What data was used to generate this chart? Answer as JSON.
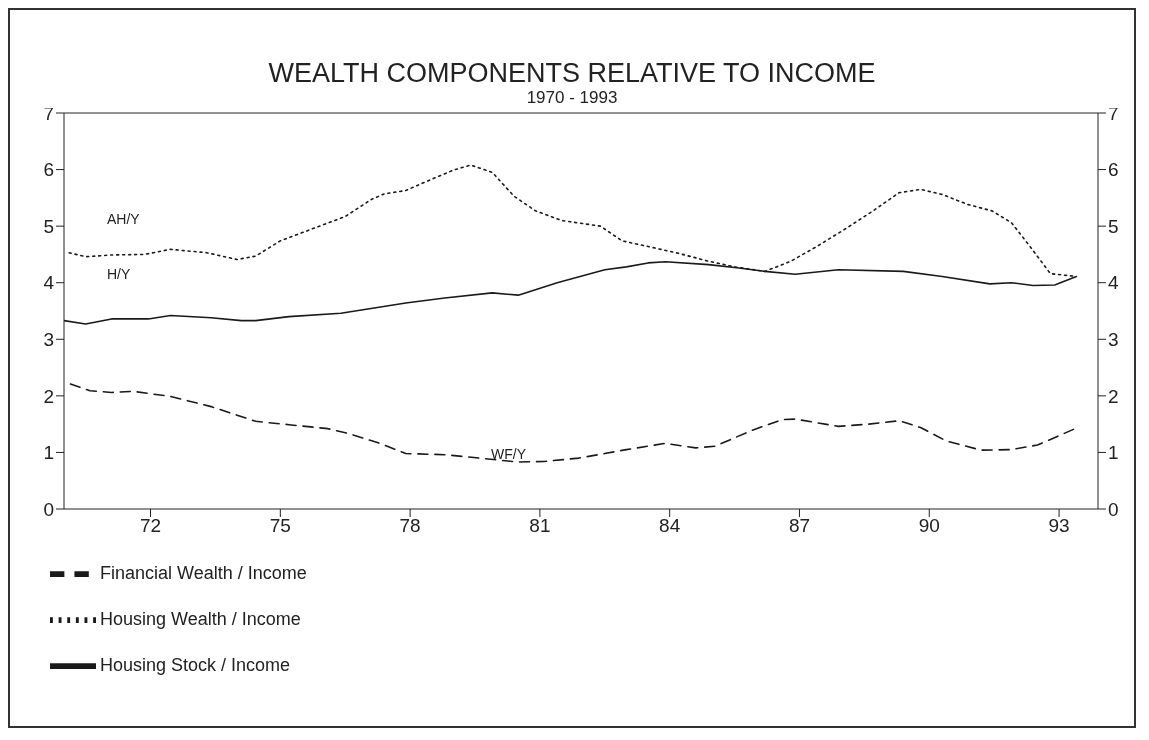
{
  "chart_data": {
    "type": "line",
    "title": "WEALTH COMPONENTS RELATIVE TO INCOME",
    "subtitle": "1970 - 1993",
    "xlim": [
      1970,
      1993.9
    ],
    "xticks": [
      {
        "value": 1972,
        "label": "72"
      },
      {
        "value": 1975,
        "label": "75"
      },
      {
        "value": 1978,
        "label": "78"
      },
      {
        "value": 1981,
        "label": "81"
      },
      {
        "value": 1984,
        "label": "84"
      },
      {
        "value": 1987,
        "label": "87"
      },
      {
        "value": 1990,
        "label": "90"
      },
      {
        "value": 1993,
        "label": "93"
      }
    ],
    "ylim": [
      0,
      7
    ],
    "yticks": [
      0,
      1,
      2,
      3,
      4,
      5,
      6,
      7
    ],
    "y2lim": [
      0,
      7
    ],
    "y2ticks": [
      0,
      1,
      2,
      3,
      4,
      5,
      6,
      7
    ],
    "grid": false,
    "legend": "bottom left",
    "marker": "none",
    "annotations": [
      "AH/Y",
      "H/Y",
      "WF/Y"
    ],
    "series": [
      {
        "name": "Financial Wealth / Income",
        "color": "#1a1a1a",
        "line_style": "dashed",
        "x": [
          1970.15,
          1970.6,
          1971.1,
          1971.6,
          1972.46,
          1973.4,
          1974.43,
          1975.2,
          1976.1,
          1976.6,
          1977.3,
          1977.9,
          1978.8,
          1979.6,
          1980.5,
          1981.1,
          1981.9,
          1982.5,
          1983.0,
          1983.9,
          1984.6,
          1985.05,
          1985.9,
          1986.6,
          1986.9,
          1987.9,
          1988.6,
          1989.3,
          1989.8,
          1990.4,
          1991.2,
          1991.9,
          1992.5,
          1993.4
        ],
        "values": [
          2.21,
          2.09,
          2.06,
          2.08,
          1.99,
          1.81,
          1.55,
          1.49,
          1.42,
          1.33,
          1.16,
          0.98,
          0.96,
          0.9,
          0.83,
          0.84,
          0.9,
          0.98,
          1.05,
          1.16,
          1.08,
          1.11,
          1.39,
          1.58,
          1.59,
          1.46,
          1.5,
          1.56,
          1.44,
          1.2,
          1.04,
          1.05,
          1.13,
          1.43
        ]
      },
      {
        "name": "Housing Wealth / Income",
        "color": "#1a1a1a",
        "line_style": "dotted",
        "x": [
          1970.12,
          1970.5,
          1971.1,
          1971.86,
          1972.46,
          1973.3,
          1974.0,
          1974.43,
          1975.0,
          1975.8,
          1976.5,
          1977.1,
          1977.4,
          1977.9,
          1978.5,
          1979.0,
          1979.4,
          1979.9,
          1980.4,
          1980.9,
          1981.5,
          1982.4,
          1982.9,
          1983.5,
          1984.2,
          1984.9,
          1985.5,
          1986.2,
          1986.8,
          1987.4,
          1988.1,
          1988.7,
          1989.3,
          1989.8,
          1990.3,
          1990.9,
          1991.45,
          1991.9,
          1992.3,
          1992.8,
          1993.4
        ],
        "values": [
          4.53,
          4.46,
          4.49,
          4.5,
          4.59,
          4.53,
          4.41,
          4.47,
          4.74,
          4.97,
          5.17,
          5.47,
          5.57,
          5.63,
          5.83,
          5.99,
          6.08,
          5.95,
          5.53,
          5.27,
          5.1,
          5.0,
          4.74,
          4.64,
          4.52,
          4.38,
          4.28,
          4.2,
          4.38,
          4.64,
          4.97,
          5.27,
          5.59,
          5.65,
          5.56,
          5.38,
          5.27,
          5.06,
          4.67,
          4.16,
          4.11
        ]
      },
      {
        "name": "Housing Stock / Income",
        "color": "#1a1a1a",
        "line_style": "solid",
        "x": [
          1970.0,
          1970.5,
          1971.1,
          1971.95,
          1972.46,
          1973.4,
          1974.1,
          1974.43,
          1975.2,
          1976.4,
          1977.9,
          1978.8,
          1979.9,
          1980.5,
          1981.4,
          1982.5,
          1983.0,
          1983.5,
          1983.9,
          1984.9,
          1985.6,
          1986.2,
          1986.9,
          1987.9,
          1989.4,
          1990.3,
          1991.4,
          1991.9,
          1992.4,
          1992.9,
          1993.4
        ],
        "values": [
          3.33,
          3.27,
          3.36,
          3.36,
          3.42,
          3.38,
          3.33,
          3.33,
          3.4,
          3.46,
          3.64,
          3.73,
          3.82,
          3.78,
          4.0,
          4.23,
          4.28,
          4.35,
          4.37,
          4.32,
          4.26,
          4.2,
          4.15,
          4.23,
          4.2,
          4.11,
          3.98,
          4.0,
          3.95,
          3.96,
          4.11
        ]
      }
    ]
  }
}
